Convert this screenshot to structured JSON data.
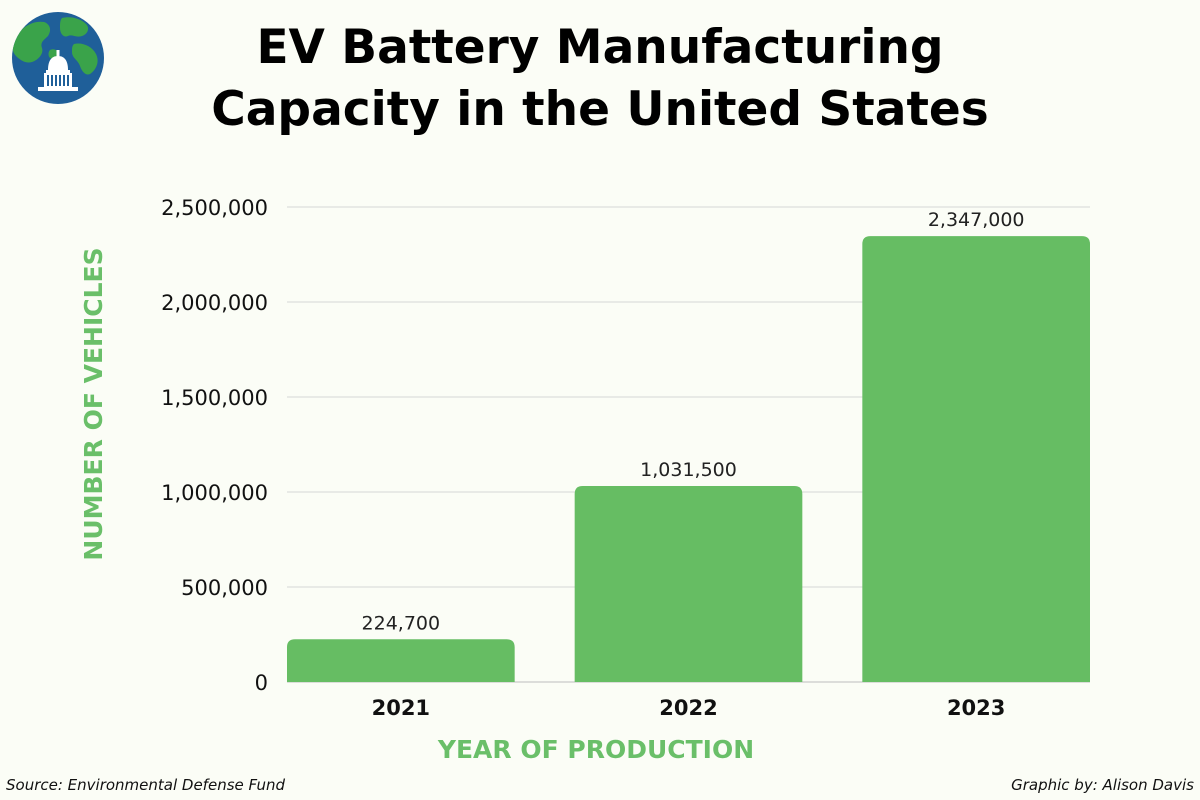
{
  "chart_data": {
    "type": "bar",
    "title_lines": [
      "EV Battery Manufacturing",
      "Capacity in the United States"
    ],
    "categories": [
      "2021",
      "2022",
      "2023"
    ],
    "values": [
      224700,
      1031500,
      2347000
    ],
    "value_labels": [
      "224,700",
      "1,031,500",
      "2,347,000"
    ],
    "xlabel": "YEAR OF PRODUCTION",
    "ylabel": "NUMBER OF VEHICLES",
    "ylim": [
      0,
      2500000
    ],
    "yticks": [
      0,
      500000,
      1000000,
      1500000,
      2000000,
      2500000
    ],
    "ytick_labels": [
      "0",
      "500,000",
      "1,000,000",
      "1,500,000",
      "2,000,000",
      "2,500,000"
    ],
    "grid": true,
    "bar_color": "#66bd63",
    "axis_title_color": "#6abf69"
  },
  "footer": {
    "source": "Source: Environmental Defense Fund",
    "credit": "Graphic by: Alison Davis"
  },
  "logo": {
    "icon": "globe-capitol-icon",
    "ocean_color": "#1f5f99",
    "land_color": "#3aa34a"
  }
}
